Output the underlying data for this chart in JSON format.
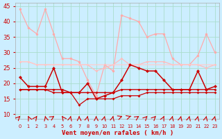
{
  "x": [
    0,
    1,
    2,
    3,
    4,
    5,
    6,
    7,
    8,
    9,
    10,
    11,
    12,
    13,
    14,
    15,
    16,
    17,
    18,
    19,
    20,
    21,
    22,
    23
  ],
  "rafales": [
    44,
    38,
    36,
    44,
    36,
    28,
    28,
    27,
    21,
    16,
    26,
    24,
    42,
    41,
    40,
    35,
    36,
    36,
    28,
    26,
    26,
    29,
    36,
    30
  ],
  "rafales2": [
    27,
    27,
    26,
    26,
    26,
    26,
    26,
    26,
    26,
    24,
    25,
    26,
    28,
    26,
    26,
    27,
    27,
    27,
    26,
    26,
    26,
    26,
    25,
    26
  ],
  "moyen_flat": [
    27,
    27,
    26,
    26,
    26,
    26,
    26,
    26,
    26,
    26,
    26,
    26,
    26,
    26,
    26,
    26,
    26,
    26,
    26,
    26,
    26,
    26,
    26,
    26
  ],
  "vent_moyen": [
    22,
    19,
    19,
    19,
    25,
    17,
    17,
    17,
    20,
    15,
    16,
    17,
    21,
    26,
    25,
    24,
    24,
    21,
    18,
    18,
    18,
    24,
    18,
    19
  ],
  "vent_base": [
    18,
    18,
    18,
    18,
    18,
    18,
    17,
    17,
    17,
    17,
    17,
    17,
    18,
    18,
    18,
    18,
    18,
    18,
    18,
    18,
    18,
    18,
    18,
    18
  ],
  "vent_min": [
    18,
    18,
    18,
    18,
    17,
    17,
    17,
    13,
    15,
    15,
    15,
    15,
    16,
    16,
    16,
    17,
    17,
    17,
    17,
    17,
    17,
    17,
    17,
    17
  ],
  "arrow_angles": [
    20,
    -10,
    15,
    -5,
    30,
    -15,
    5,
    0,
    5,
    0,
    5,
    5,
    45,
    50,
    30,
    20,
    20,
    10,
    5,
    5,
    5,
    5,
    5,
    5
  ],
  "bg_color": "#cceeff",
  "grid_color": "#aaddcc",
  "col_dark": "#cc0000",
  "col_medium": "#ff6666",
  "col_light": "#ffaaaa",
  "col_vlight": "#ffcccc",
  "xlabel": "Vent moyen/en rafales ( km/h )",
  "ylim": [
    8.5,
    46
  ],
  "yticks": [
    10,
    15,
    20,
    25,
    30,
    35,
    40,
    45
  ]
}
